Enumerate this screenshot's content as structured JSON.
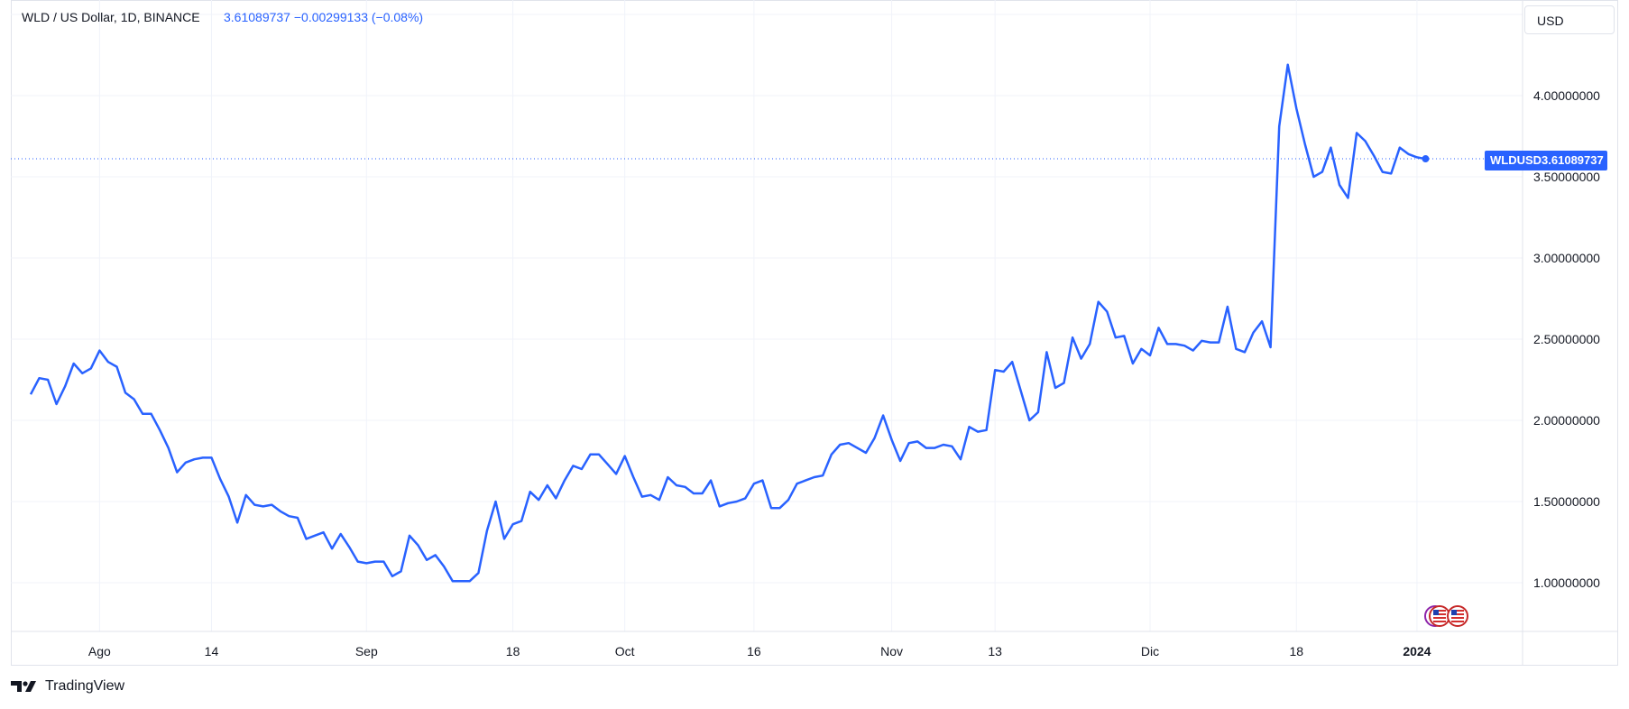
{
  "header": {
    "symbol_title": "WLD / US Dollar, 1D, BINANCE",
    "quote": "3.61089737  −0.00299133 (−0.08%)"
  },
  "currency_button": "USD",
  "last_price_tag": {
    "symbol": "WLDUSD",
    "price": "3.61089737"
  },
  "branding": {
    "logo_text": "TradingView"
  },
  "colors": {
    "line": "#2962ff",
    "grid": "#f0f3fa",
    "axis_text": "#131722",
    "border": "#e0e3eb"
  },
  "chart_data": {
    "type": "line",
    "title": "",
    "xlabel": "",
    "ylabel": "",
    "ylim": [
      0.7,
      4.45
    ],
    "y_ticks": [
      {
        "value": 1.0,
        "label": "1.00000000"
      },
      {
        "value": 1.5,
        "label": "1.50000000"
      },
      {
        "value": 2.0,
        "label": "2.00000000"
      },
      {
        "value": 2.5,
        "label": "2.50000000"
      },
      {
        "value": 3.0,
        "label": "3.00000000"
      },
      {
        "value": 3.5,
        "label": "3.50000000"
      },
      {
        "value": 4.0,
        "label": "4.00000000"
      }
    ],
    "x_ticks": [
      {
        "date": "2023-08-01",
        "label": "Ago"
      },
      {
        "date": "2023-08-14",
        "label": "14"
      },
      {
        "date": "2023-09-01",
        "label": "Sep"
      },
      {
        "date": "2023-09-18",
        "label": "18"
      },
      {
        "date": "2023-10-01",
        "label": "Oct"
      },
      {
        "date": "2023-10-16",
        "label": "16"
      },
      {
        "date": "2023-11-01",
        "label": "Nov"
      },
      {
        "date": "2023-11-13",
        "label": "13"
      },
      {
        "date": "2023-12-01",
        "label": "Dic"
      },
      {
        "date": "2023-12-18",
        "label": "18"
      },
      {
        "date": "2024-01-01",
        "label": "2024"
      }
    ],
    "last_value": 3.61089737,
    "grid": true,
    "series": [
      {
        "name": "WLDUSD",
        "x": [
          "2023-07-24",
          "2023-07-25",
          "2023-07-26",
          "2023-07-27",
          "2023-07-28",
          "2023-07-29",
          "2023-07-30",
          "2023-07-31",
          "2023-08-01",
          "2023-08-02",
          "2023-08-03",
          "2023-08-04",
          "2023-08-05",
          "2023-08-06",
          "2023-08-07",
          "2023-08-08",
          "2023-08-09",
          "2023-08-10",
          "2023-08-11",
          "2023-08-12",
          "2023-08-13",
          "2023-08-14",
          "2023-08-15",
          "2023-08-16",
          "2023-08-17",
          "2023-08-18",
          "2023-08-19",
          "2023-08-20",
          "2023-08-21",
          "2023-08-22",
          "2023-08-23",
          "2023-08-24",
          "2023-08-25",
          "2023-08-26",
          "2023-08-27",
          "2023-08-28",
          "2023-08-29",
          "2023-08-30",
          "2023-08-31",
          "2023-09-01",
          "2023-09-02",
          "2023-09-03",
          "2023-09-04",
          "2023-09-05",
          "2023-09-06",
          "2023-09-07",
          "2023-09-08",
          "2023-09-09",
          "2023-09-10",
          "2023-09-11",
          "2023-09-12",
          "2023-09-13",
          "2023-09-14",
          "2023-09-15",
          "2023-09-16",
          "2023-09-17",
          "2023-09-18",
          "2023-09-19",
          "2023-09-20",
          "2023-09-21",
          "2023-09-22",
          "2023-09-23",
          "2023-09-24",
          "2023-09-25",
          "2023-09-26",
          "2023-09-27",
          "2023-09-28",
          "2023-09-29",
          "2023-09-30",
          "2023-10-01",
          "2023-10-02",
          "2023-10-03",
          "2023-10-04",
          "2023-10-05",
          "2023-10-06",
          "2023-10-07",
          "2023-10-08",
          "2023-10-09",
          "2023-10-10",
          "2023-10-11",
          "2023-10-12",
          "2023-10-13",
          "2023-10-14",
          "2023-10-15",
          "2023-10-16",
          "2023-10-17",
          "2023-10-18",
          "2023-10-19",
          "2023-10-20",
          "2023-10-21",
          "2023-10-22",
          "2023-10-23",
          "2023-10-24",
          "2023-10-25",
          "2023-10-26",
          "2023-10-27",
          "2023-10-28",
          "2023-10-29",
          "2023-10-30",
          "2023-10-31",
          "2023-11-01",
          "2023-11-02",
          "2023-11-03",
          "2023-11-04",
          "2023-11-05",
          "2023-11-06",
          "2023-11-07",
          "2023-11-08",
          "2023-11-09",
          "2023-11-10",
          "2023-11-11",
          "2023-11-12",
          "2023-11-13",
          "2023-11-14",
          "2023-11-15",
          "2023-11-16",
          "2023-11-17",
          "2023-11-18",
          "2023-11-19",
          "2023-11-20",
          "2023-11-21",
          "2023-11-22",
          "2023-11-23",
          "2023-11-24",
          "2023-11-25",
          "2023-11-26",
          "2023-11-27",
          "2023-11-28",
          "2023-11-29",
          "2023-11-30",
          "2023-12-01",
          "2023-12-02",
          "2023-12-03",
          "2023-12-04",
          "2023-12-05",
          "2023-12-06",
          "2023-12-07",
          "2023-12-08",
          "2023-12-09",
          "2023-12-10",
          "2023-12-11",
          "2023-12-12",
          "2023-12-13",
          "2023-12-14",
          "2023-12-15",
          "2023-12-16",
          "2023-12-17",
          "2023-12-18",
          "2023-12-19",
          "2023-12-20",
          "2023-12-21",
          "2023-12-22",
          "2023-12-23",
          "2023-12-24",
          "2023-12-25",
          "2023-12-26",
          "2023-12-27",
          "2023-12-28",
          "2023-12-29",
          "2023-12-30",
          "2023-12-31",
          "2024-01-01",
          "2024-01-02"
        ],
        "values": [
          2.16,
          2.26,
          2.25,
          2.1,
          2.21,
          2.35,
          2.29,
          2.32,
          2.43,
          2.36,
          2.33,
          2.17,
          2.13,
          2.04,
          2.04,
          1.94,
          1.83,
          1.68,
          1.74,
          1.76,
          1.77,
          1.77,
          1.64,
          1.53,
          1.37,
          1.54,
          1.48,
          1.47,
          1.48,
          1.44,
          1.41,
          1.4,
          1.27,
          1.29,
          1.31,
          1.21,
          1.3,
          1.22,
          1.13,
          1.12,
          1.13,
          1.13,
          1.04,
          1.07,
          1.29,
          1.23,
          1.14,
          1.17,
          1.1,
          1.01,
          1.01,
          1.01,
          1.06,
          1.32,
          1.5,
          1.27,
          1.36,
          1.38,
          1.56,
          1.51,
          1.6,
          1.52,
          1.63,
          1.72,
          1.7,
          1.79,
          1.79,
          1.73,
          1.67,
          1.78,
          1.65,
          1.53,
          1.54,
          1.51,
          1.65,
          1.6,
          1.59,
          1.55,
          1.55,
          1.63,
          1.47,
          1.49,
          1.5,
          1.52,
          1.61,
          1.63,
          1.46,
          1.46,
          1.51,
          1.61,
          1.63,
          1.65,
          1.66,
          1.79,
          1.85,
          1.86,
          1.83,
          1.8,
          1.89,
          2.03,
          1.88,
          1.75,
          1.86,
          1.87,
          1.83,
          1.83,
          1.85,
          1.84,
          1.76,
          1.96,
          1.93,
          1.94,
          2.31,
          2.3,
          2.36,
          2.18,
          2.0,
          2.05,
          2.42,
          2.2,
          2.23,
          2.51,
          2.38,
          2.47,
          2.73,
          2.67,
          2.51,
          2.52,
          2.35,
          2.44,
          2.4,
          2.57,
          2.47,
          2.47,
          2.46,
          2.43,
          2.49,
          2.48,
          2.48,
          2.7,
          2.44,
          2.42,
          2.54,
          2.61,
          2.45,
          3.81,
          4.19,
          3.92,
          3.7,
          3.5,
          3.53,
          3.68,
          3.45,
          3.37,
          3.77,
          3.72,
          3.63,
          3.53,
          3.52,
          3.68,
          3.64,
          3.62,
          3.61
        ]
      }
    ]
  }
}
